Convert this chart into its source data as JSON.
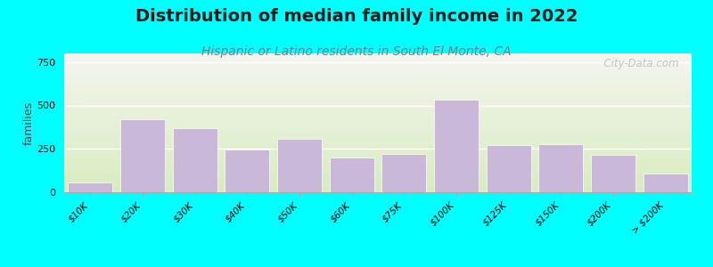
{
  "title": "Distribution of median family income in 2022",
  "subtitle": "Hispanic or Latino residents in South El Monte, CA",
  "categories": [
    "$10K",
    "$20K",
    "$30K",
    "$40K",
    "$50K",
    "$60K",
    "$75K",
    "$100K",
    "$125K",
    "$150K",
    "$200K",
    "> $200K"
  ],
  "values": [
    55,
    420,
    370,
    245,
    310,
    200,
    220,
    535,
    270,
    275,
    215,
    110
  ],
  "bar_color": "#c9b8d8",
  "bar_edge_color": "#ffffff",
  "background_color": "#00ffff",
  "title_color": "#1a1a1a",
  "subtitle_color": "#5a8a8a",
  "ylabel": "families",
  "ylim": [
    0,
    800
  ],
  "yticks": [
    0,
    250,
    500,
    750
  ],
  "watermark": "  City-Data.com",
  "title_fontsize": 14,
  "subtitle_fontsize": 10,
  "watermark_color": "#bbbbbb",
  "grid_color": "#ffffff",
  "bg_gradient_top": "#d8ecc0",
  "bg_gradient_bottom": "#f5f5f0"
}
